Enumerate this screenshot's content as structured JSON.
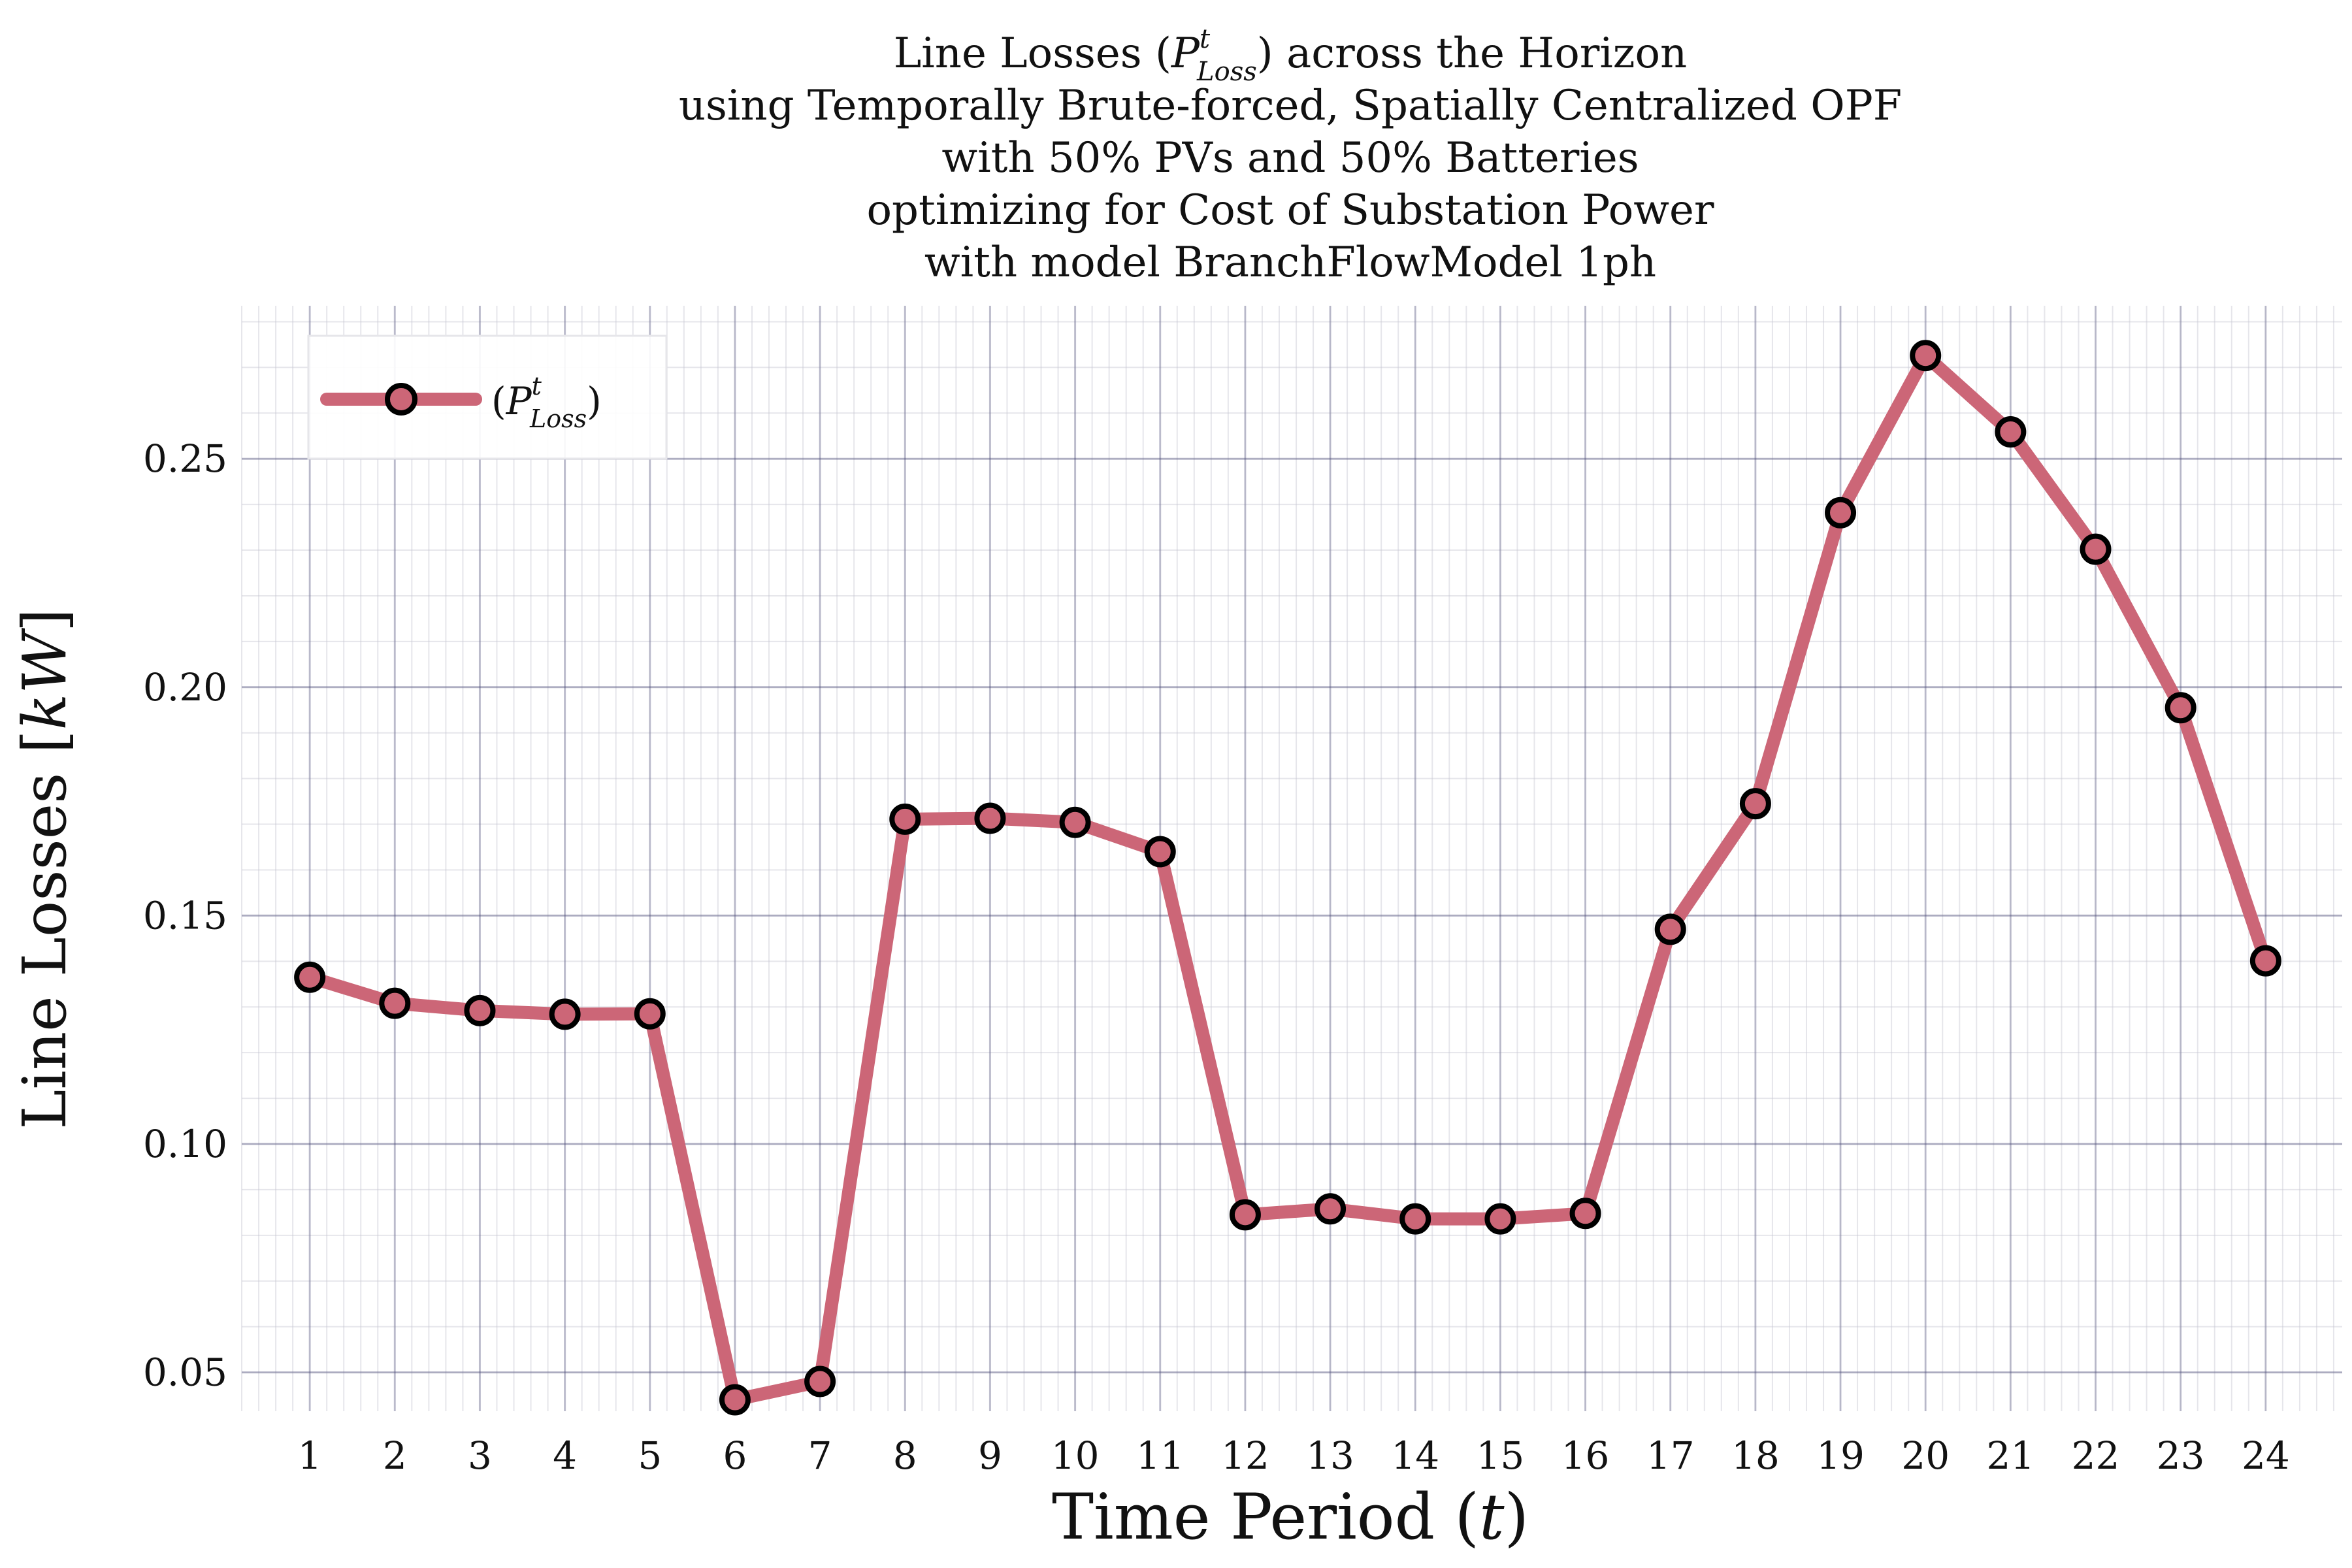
{
  "chart_data": {
    "type": "line",
    "title_lines": [
      "Line Losses (P^t_Loss) across the Horizon",
      "using Temporally Brute-forced, Spatially Centralized OPF",
      "with 50% PVs and 50% Batteries",
      "optimizing for Cost of Substation Power",
      "with model BranchFlowModel 1ph"
    ],
    "title_parts": {
      "pre": "Line Losses (",
      "P": "P",
      "sup": "t",
      "sub": "Loss",
      "post": ") across the Horizon"
    },
    "xlabel": {
      "pre": "Time Period (",
      "var": "t",
      "post": ")"
    },
    "ylabel": {
      "pre": "Line Losses [",
      "var": "kW",
      "post": "]"
    },
    "legend": {
      "open": "(",
      "P": "P",
      "sup": "t",
      "sub": "Loss",
      "close": ")",
      "placement": "top-left"
    },
    "x": [
      1,
      2,
      3,
      4,
      5,
      6,
      7,
      8,
      9,
      10,
      11,
      12,
      13,
      14,
      15,
      16,
      17,
      18,
      19,
      20,
      21,
      22,
      23,
      24
    ],
    "x_tick_labels": [
      "1",
      "2",
      "3",
      "4",
      "5",
      "6",
      "7",
      "8",
      "9",
      "10",
      "11",
      "12",
      "13",
      "14",
      "15",
      "16",
      "17",
      "18",
      "19",
      "20",
      "21",
      "22",
      "23",
      "24"
    ],
    "series": [
      {
        "name": "(P^t_Loss)",
        "values": [
          0.1365,
          0.1308,
          0.1292,
          0.1284,
          0.1285,
          0.044,
          0.048,
          0.1711,
          0.1713,
          0.1704,
          0.164,
          0.0845,
          0.0858,
          0.0836,
          0.0836,
          0.0848,
          0.147,
          0.1745,
          0.2382,
          0.2726,
          0.2559,
          0.2302,
          0.1955,
          0.1401
        ]
      }
    ],
    "y_ticks": [
      0.05,
      0.1,
      0.15,
      0.2,
      0.25
    ],
    "y_tick_labels": [
      "0.05",
      "0.10",
      "0.15",
      "0.20",
      "0.25"
    ],
    "xlim": [
      0.2,
      24.9
    ],
    "ylim": [
      0.0415,
      0.2835
    ],
    "grid": true,
    "colors": {
      "line": "#cc6677",
      "marker_edge": "#000000",
      "major_grid": "#3c3c6e",
      "minor_grid": "#c8c8d2"
    }
  }
}
